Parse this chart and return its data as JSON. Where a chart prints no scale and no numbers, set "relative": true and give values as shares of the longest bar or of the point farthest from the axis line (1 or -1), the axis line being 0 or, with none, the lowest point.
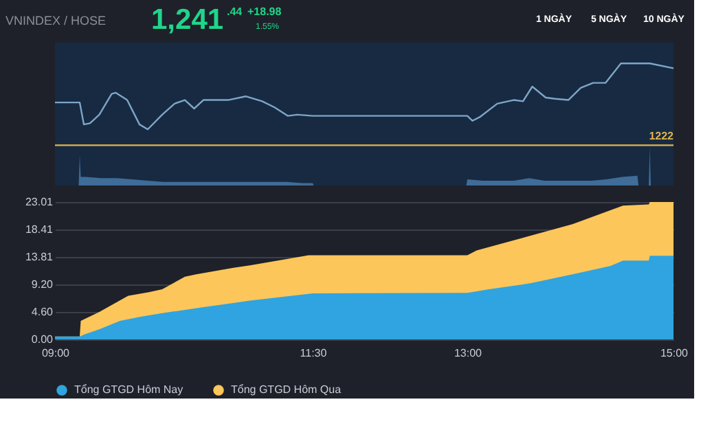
{
  "chart_data": [
    {
      "type": "line",
      "relative": true,
      "title": "VNINDEX / HOSE",
      "annotations": [
        "1,241",
        ".44",
        "+18.98",
        "1.55%",
        "1 NGÀY",
        "5 NGÀY",
        "10 NGÀY",
        "1222"
      ],
      "xlim": [
        9,
        15
      ],
      "tick_labels": false,
      "legend": false,
      "grid": false,
      "series": [
        {
          "type": "area",
          "color": "#3f6c98",
          "x": [
            9.23,
            9.24,
            9.25,
            9.3,
            9.45,
            9.6,
            9.75,
            9.9,
            10.05,
            10.2,
            10.35,
            10.5,
            10.65,
            10.8,
            10.95,
            11.1,
            11.25,
            11.4,
            11.5,
            11.51,
            12.99,
            13.0,
            13.15,
            13.3,
            13.45,
            13.6,
            13.75,
            13.9,
            14.05,
            14.2,
            14.35,
            14.5,
            14.65,
            14.66,
            14.76,
            14.77,
            14.78
          ],
          "values": [
            0,
            0.25,
            0.07,
            0.07,
            0.06,
            0.06,
            0.05,
            0.04,
            0.03,
            0.03,
            0.03,
            0.03,
            0.03,
            0.03,
            0.03,
            0.03,
            0.03,
            0.02,
            0.02,
            0,
            0,
            0.05,
            0.04,
            0.04,
            0.04,
            0.06,
            0.04,
            0.04,
            0.04,
            0.04,
            0.05,
            0.07,
            0.08,
            0,
            0,
            0.31,
            0
          ]
        },
        {
          "color": "#7ea6c8",
          "x": [
            9.0,
            9.24,
            9.28,
            9.34,
            9.43,
            9.55,
            9.59,
            9.7,
            9.82,
            9.9,
            10.04,
            10.16,
            10.26,
            10.35,
            10.44,
            10.56,
            10.68,
            10.85,
            11.01,
            11.13,
            11.26,
            11.35,
            11.5,
            13.0,
            13.05,
            13.12,
            13.29,
            13.45,
            13.54,
            13.63,
            13.76,
            13.85,
            13.98,
            14.1,
            14.22,
            14.34,
            14.49,
            14.77,
            15.0
          ],
          "values": [
            0.68,
            0.68,
            0.5,
            0.51,
            0.58,
            0.75,
            0.76,
            0.7,
            0.5,
            0.46,
            0.58,
            0.67,
            0.7,
            0.63,
            0.7,
            0.7,
            0.7,
            0.73,
            0.69,
            0.64,
            0.57,
            0.58,
            0.57,
            0.57,
            0.53,
            0.56,
            0.67,
            0.7,
            0.69,
            0.81,
            0.72,
            0.71,
            0.7,
            0.8,
            0.84,
            0.84,
            1,
            1,
            0.96
          ]
        }
      ],
      "ref_lines": [
        {
          "axis": "y",
          "value": 0.33,
          "color": "#e6b545"
        }
      ]
    },
    {
      "type": "area",
      "xlim": [
        9,
        15
      ],
      "xticks": [
        {
          "value": 9,
          "label": "09:00"
        },
        {
          "value": 11.5,
          "label": "11:30"
        },
        {
          "value": 13,
          "label": "13:00"
        },
        {
          "value": 15,
          "label": "15:00"
        }
      ],
      "ylim": [
        0,
        23.01
      ],
      "yticks": [
        {
          "value": 0,
          "label": "0.00"
        },
        {
          "value": 4.6,
          "label": "4.60"
        },
        {
          "value": 9.2,
          "label": "9.20"
        },
        {
          "value": 13.81,
          "label": "13.81"
        },
        {
          "value": 18.41,
          "label": "18.41"
        },
        {
          "value": 23.01,
          "label": "23.01"
        }
      ],
      "grid": "y",
      "legend": "bottom",
      "series": [
        {
          "name": "Tổng GTGD Hôm Nay",
          "color": "#2fa4e0",
          "x": [
            9.0,
            9.24,
            9.28,
            9.43,
            9.63,
            9.83,
            10.04,
            10.24,
            10.44,
            10.73,
            10.89,
            11.5,
            13.0,
            13.21,
            13.61,
            14.02,
            14.39,
            14.51,
            14.76,
            14.77,
            15.0
          ],
          "values": [
            0.5,
            0.5,
            0.8,
            1.7,
            3.1,
            3.8,
            4.4,
            4.9,
            5.4,
            6.1,
            6.5,
            7.7,
            7.8,
            8.4,
            9.4,
            10.9,
            12.3,
            13.2,
            13.2,
            14.0,
            14.0
          ]
        },
        {
          "name": "Tổng GTGD Hôm Qua",
          "color": "#fdc65a",
          "x": [
            9.0,
            9.24,
            9.25,
            9.43,
            9.71,
            9.91,
            10.04,
            10.26,
            10.37,
            10.73,
            10.89,
            11.46,
            13.0,
            13.09,
            14.02,
            14.51,
            14.76,
            14.77,
            15.0
          ],
          "values": [
            0.5,
            0.5,
            3.1,
            4.6,
            7.3,
            7.9,
            8.4,
            10.5,
            10.9,
            12.0,
            12.4,
            14.1,
            14.1,
            14.9,
            19.3,
            22.4,
            22.6,
            23.0,
            23.0
          ]
        }
      ]
    }
  ]
}
